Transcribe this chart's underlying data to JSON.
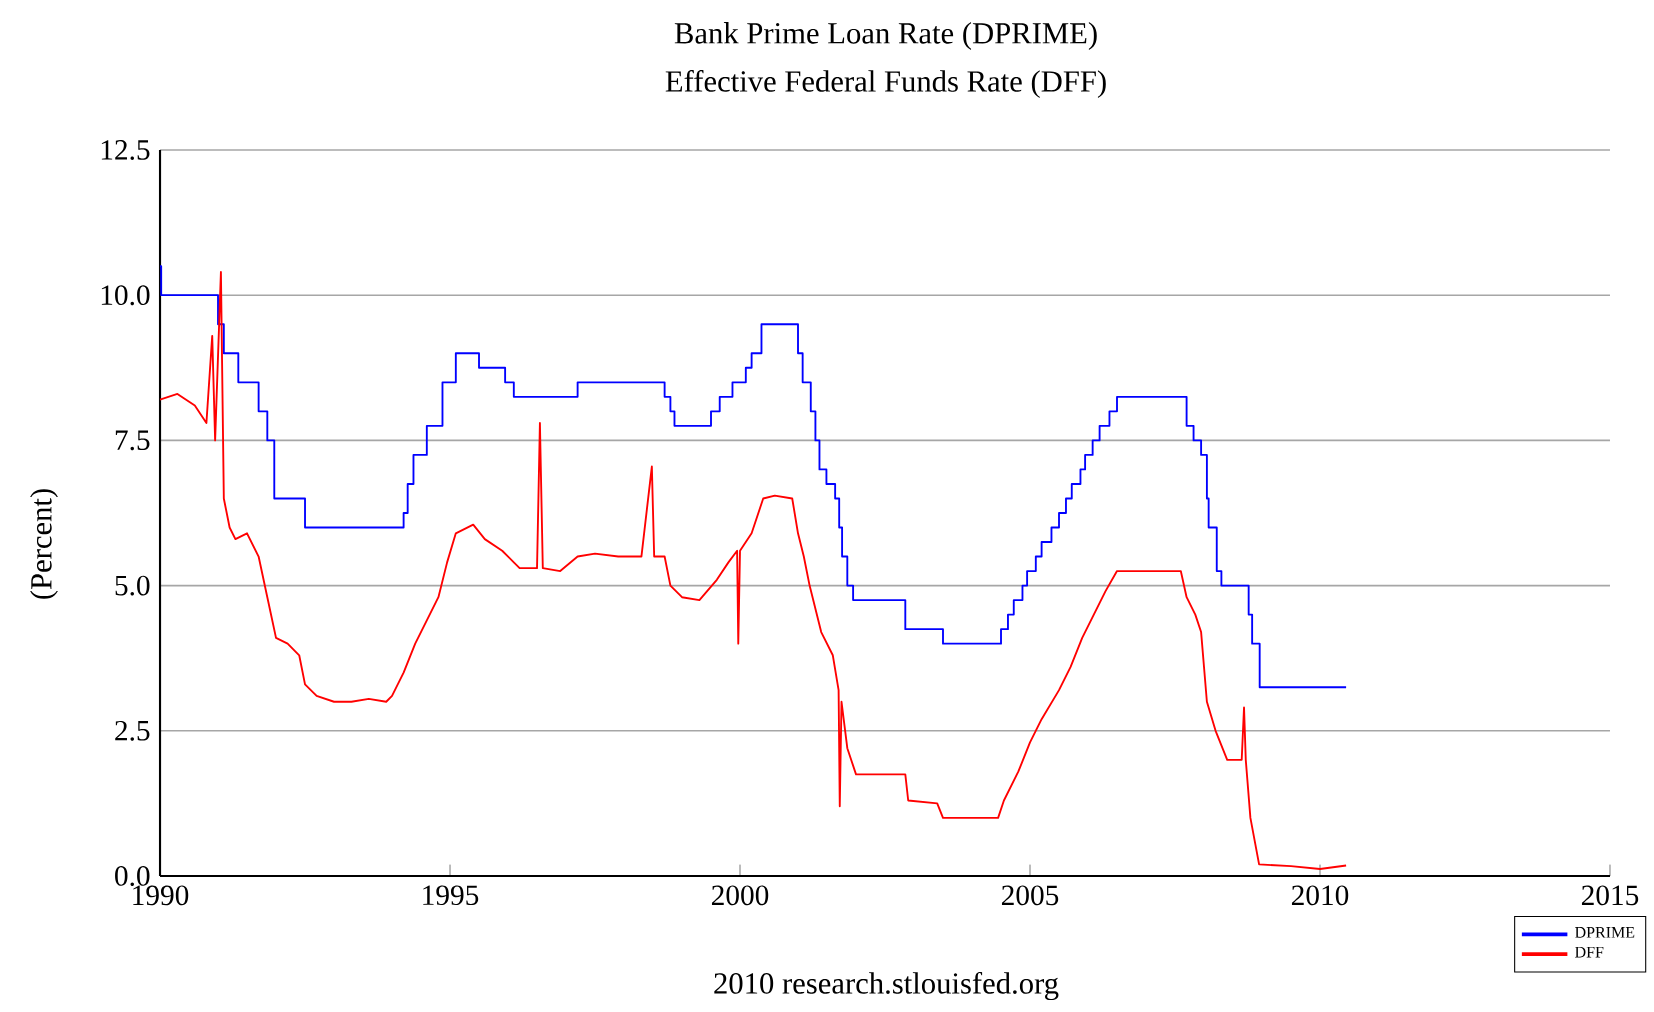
{
  "chart_data": {
    "type": "line",
    "title": "Bank Prime Loan Rate (DPRIME)",
    "subtitle": "Effective Federal Funds Rate (DFF)",
    "ylabel": "(Percent)",
    "annotations": [
      "2010 research.stlouisfed.org"
    ],
    "xlim": [
      1990,
      2015
    ],
    "xticks": [
      1990,
      1995,
      2000,
      2005,
      2010,
      2015
    ],
    "ylim": [
      0,
      12.5
    ],
    "yticks": [
      {
        "value": 0,
        "label": "0.0"
      },
      {
        "value": 2.5,
        "label": "2.5"
      },
      {
        "value": 5,
        "label": "5.0"
      },
      {
        "value": 7.5,
        "label": "7.5"
      },
      {
        "value": 10,
        "label": "10.0"
      },
      {
        "value": 12.5,
        "label": "12.5"
      }
    ],
    "grid": "y",
    "legend": "bottom right",
    "series": [
      {
        "name": "DPRIME",
        "type": "step",
        "color": "#0000ff",
        "x": [
          1990.0,
          1990.02,
          1991.0,
          1991.1,
          1991.35,
          1991.7,
          1991.85,
          1991.97,
          1992.5,
          1994.2,
          1994.27,
          1994.37,
          1994.6,
          1994.87,
          1995.1,
          1995.5,
          1995.95,
          1996.1,
          1997.2,
          1998.7,
          1998.8,
          1998.87,
          1999.5,
          1999.65,
          1999.87,
          2000.1,
          2000.2,
          2000.37,
          2001.0,
          2001.08,
          2001.22,
          2001.3,
          2001.37,
          2001.49,
          2001.64,
          2001.71,
          2001.76,
          2001.85,
          2001.95,
          2002.85,
          2003.5,
          2004.5,
          2004.62,
          2004.72,
          2004.87,
          2004.95,
          2005.1,
          2005.2,
          2005.37,
          2005.5,
          2005.62,
          2005.72,
          2005.87,
          2005.95,
          2006.08,
          2006.2,
          2006.37,
          2006.5,
          2007.7,
          2007.82,
          2007.95,
          2008.05,
          2008.08,
          2008.22,
          2008.3,
          2008.77,
          2008.83,
          2008.96,
          2010.45
        ],
        "values": [
          10.5,
          10.0,
          9.5,
          9.0,
          8.5,
          8.0,
          7.5,
          6.5,
          6.0,
          6.25,
          6.75,
          7.25,
          7.75,
          8.5,
          9.0,
          8.75,
          8.5,
          8.25,
          8.5,
          8.25,
          8.0,
          7.75,
          8.0,
          8.25,
          8.5,
          8.75,
          9.0,
          9.5,
          9.0,
          8.5,
          8.0,
          7.5,
          7.0,
          6.75,
          6.5,
          6.0,
          5.5,
          5.0,
          4.75,
          4.25,
          4.0,
          4.25,
          4.5,
          4.75,
          5.0,
          5.25,
          5.5,
          5.75,
          6.0,
          6.25,
          6.5,
          6.75,
          7.0,
          7.25,
          7.5,
          7.75,
          8.0,
          8.25,
          7.75,
          7.5,
          7.25,
          6.5,
          6.0,
          5.25,
          5.0,
          4.5,
          4.0,
          3.25,
          3.25
        ]
      },
      {
        "name": "DFF",
        "color": "#ff0000",
        "x": [
          1990.0,
          1990.3,
          1990.6,
          1990.8,
          1990.9,
          1990.95,
          1991.05,
          1991.1,
          1991.2,
          1991.3,
          1991.5,
          1991.7,
          1991.85,
          1992.0,
          1992.2,
          1992.4,
          1992.5,
          1992.7,
          1993.0,
          1993.3,
          1993.6,
          1993.9,
          1994.0,
          1994.2,
          1994.4,
          1994.6,
          1994.8,
          1994.95,
          1995.1,
          1995.4,
          1995.6,
          1995.9,
          1996.1,
          1996.2,
          1996.5,
          1996.55,
          1996.6,
          1996.9,
          1997.2,
          1997.5,
          1997.9,
          1998.3,
          1998.48,
          1998.52,
          1998.7,
          1998.8,
          1999.0,
          1999.3,
          1999.6,
          1999.8,
          1999.95,
          1999.97,
          2000.0,
          2000.2,
          2000.4,
          2000.6,
          2000.9,
          2001.0,
          2001.1,
          2001.2,
          2001.4,
          2001.6,
          2001.7,
          2001.72,
          2001.75,
          2001.85,
          2002.0,
          2002.5,
          2002.85,
          2002.9,
          2003.4,
          2003.5,
          2004.0,
          2004.45,
          2004.55,
          2004.8,
          2005.0,
          2005.2,
          2005.5,
          2005.7,
          2005.9,
          2006.1,
          2006.3,
          2006.5,
          2007.0,
          2007.6,
          2007.7,
          2007.85,
          2007.95,
          2008.05,
          2008.2,
          2008.4,
          2008.65,
          2008.69,
          2008.72,
          2008.8,
          2008.95,
          2009.5,
          2010.0,
          2010.45
        ],
        "values": [
          8.2,
          8.3,
          8.1,
          7.8,
          9.3,
          7.5,
          10.4,
          6.5,
          6.0,
          5.8,
          5.9,
          5.5,
          4.8,
          4.1,
          4.0,
          3.8,
          3.3,
          3.1,
          3.0,
          3.0,
          3.05,
          3.0,
          3.1,
          3.5,
          4.0,
          4.4,
          4.8,
          5.4,
          5.9,
          6.05,
          5.8,
          5.6,
          5.4,
          5.3,
          5.3,
          7.8,
          5.3,
          5.25,
          5.5,
          5.55,
          5.5,
          5.5,
          7.05,
          5.5,
          5.5,
          5.0,
          4.8,
          4.75,
          5.1,
          5.4,
          5.6,
          4.0,
          5.6,
          5.9,
          6.5,
          6.55,
          6.5,
          5.9,
          5.5,
          5.0,
          4.2,
          3.8,
          3.2,
          1.2,
          3.0,
          2.2,
          1.75,
          1.75,
          1.75,
          1.3,
          1.25,
          1.0,
          1.0,
          1.0,
          1.3,
          1.8,
          2.3,
          2.7,
          3.2,
          3.6,
          4.1,
          4.5,
          4.9,
          5.25,
          5.25,
          5.25,
          4.8,
          4.5,
          4.2,
          3.0,
          2.5,
          2.0,
          2.0,
          2.9,
          2.0,
          1.0,
          0.2,
          0.17,
          0.12,
          0.18
        ]
      }
    ]
  }
}
